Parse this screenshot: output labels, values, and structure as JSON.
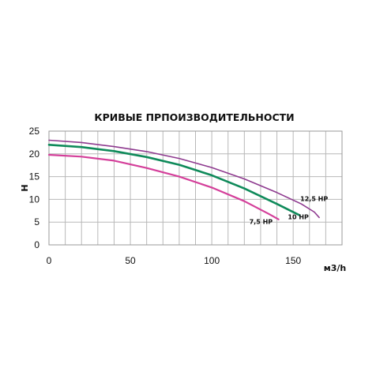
{
  "chart_data": {
    "type": "line",
    "title": "КРИВЫЕ  ПРПОИЗВОДИТЕЛЬНОСТИ",
    "xlabel": "м3/h",
    "ylabel": "H",
    "xlim": [
      0,
      180
    ],
    "ylim": [
      0,
      25
    ],
    "xticks": [
      0,
      50,
      100,
      150
    ],
    "yticks": [
      0,
      5,
      10,
      15,
      20,
      25
    ],
    "grid": true,
    "series": [
      {
        "name": "12,5 HP",
        "color": "#8e3a8f",
        "x": [
          0,
          20,
          40,
          60,
          80,
          100,
          120,
          140,
          155,
          163,
          166
        ],
        "y": [
          23.0,
          22.5,
          21.6,
          20.5,
          19.0,
          17.0,
          14.5,
          11.5,
          9.0,
          7.2,
          6.0
        ]
      },
      {
        "name": "10 HP",
        "color": "#0f8a5a",
        "x": [
          0,
          20,
          40,
          60,
          80,
          100,
          120,
          140,
          154
        ],
        "y": [
          22.0,
          21.5,
          20.6,
          19.3,
          17.6,
          15.3,
          12.4,
          9.0,
          6.5
        ]
      },
      {
        "name": "7,5 HP",
        "color": "#d43f9a",
        "x": [
          0,
          20,
          40,
          60,
          80,
          100,
          120,
          135,
          141
        ],
        "y": [
          19.8,
          19.4,
          18.5,
          16.9,
          15.0,
          12.6,
          9.6,
          6.8,
          5.6
        ]
      }
    ]
  }
}
